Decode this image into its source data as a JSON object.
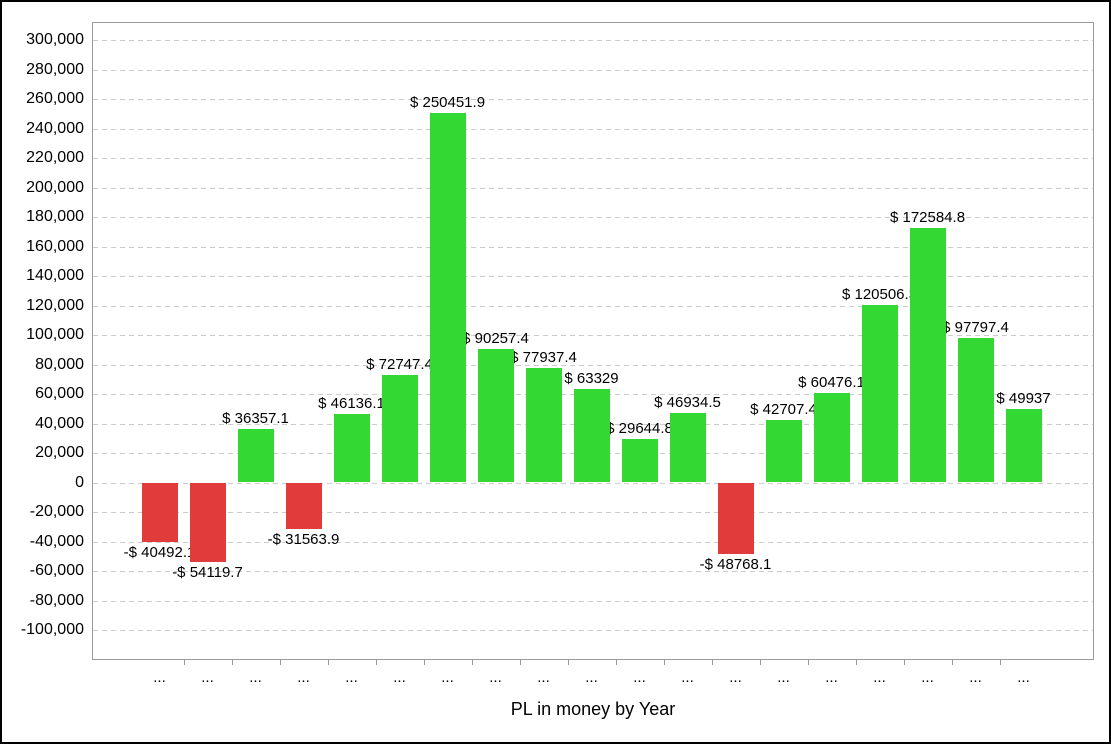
{
  "chart_data": {
    "type": "bar",
    "title": "PL in money by Year",
    "categories": [
      "...",
      "...",
      "...",
      "...",
      "...",
      "...",
      "...",
      "...",
      "...",
      "...",
      "...",
      "...",
      "...",
      "...",
      "...",
      "...",
      "...",
      "...",
      "..."
    ],
    "values": [
      -40492.1,
      -54119.7,
      36357.1,
      -31563.9,
      46136.1,
      72747.4,
      250451.9,
      90257.4,
      77937.4,
      63329,
      29644.8,
      46934.5,
      -48768.1,
      42707.4,
      60476.1,
      120506.3,
      172584.8,
      97797.4,
      49937
    ],
    "bar_labels": [
      "-$ 40492.1",
      "-$ 54119.7",
      "$ 36357.1",
      "-$ 31563.9",
      "$ 46136.1",
      "$ 72747.4",
      "$ 250451.9",
      "$ 90257.4",
      "$ 77937.4",
      "$ 63329",
      "$ 29644.8",
      "$ 46934.5",
      "-$ 48768.1",
      "$ 42707.4",
      "$ 60476.1",
      "$ 120506.3",
      "$ 172584.8",
      "$ 97797.4",
      "$ 49937"
    ],
    "xlabel": "",
    "ylabel": "",
    "ylim": [
      -100000,
      300000
    ],
    "ytick_step": 20000,
    "ytick_labels": [
      "300,000",
      "280,000",
      "260,000",
      "240,000",
      "220,000",
      "200,000",
      "180,000",
      "160,000",
      "140,000",
      "120,000",
      "100,000",
      "80,000",
      "60,000",
      "40,000",
      "20,000",
      "0",
      "-20,000",
      "-40,000",
      "-60,000",
      "-80,000",
      "-100,000"
    ],
    "grid": "horizontal-dashed",
    "legend_position": "none",
    "label_paint_order": "labels-behind-bars",
    "colors": {
      "positive_bar": "#33d833",
      "negative_bar": "#e23b3b",
      "gridline": "#cccccc",
      "plot_border": "#9b9b9b",
      "text": "#000000",
      "background": "#ffffff",
      "frame_border": "#000000"
    }
  }
}
